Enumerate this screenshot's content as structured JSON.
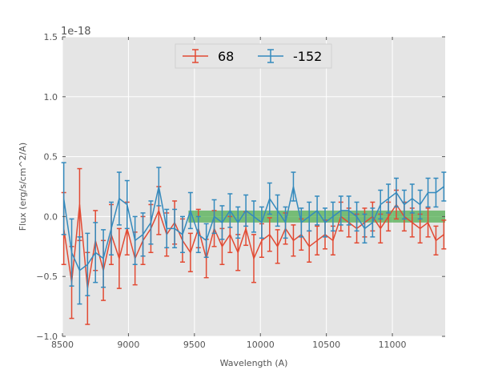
{
  "chart_data": {
    "type": "line",
    "title": "",
    "xlabel": "Wavelength (A)",
    "ylabel": "Flux (erg/s/cm^2/A)",
    "offset_text": "1e-18",
    "xlim": [
      8500,
      11400
    ],
    "ylim": [
      -1.0,
      1.5
    ],
    "xticks": [
      8500,
      9000,
      9500,
      10000,
      10500,
      11000
    ],
    "xtick_labels": [
      "8500",
      "9000",
      "9500",
      "10000",
      "10500",
      "11000"
    ],
    "yticks": [
      -1.0,
      -0.5,
      0.0,
      0.5,
      1.0,
      1.5
    ],
    "ytick_labels": [
      "−1.0",
      "−0.5",
      "0.0",
      "0.5",
      "1.0",
      "1.5"
    ],
    "grid": true,
    "legend_position": "top-center",
    "band": {
      "x": [
        9455,
        11400
      ],
      "y": [
        -0.05,
        0.05
      ],
      "color": "#2ca02c"
    },
    "x": [
      8510,
      8570,
      8630,
      8690,
      8750,
      8810,
      8870,
      8930,
      8990,
      9050,
      9110,
      9170,
      9230,
      9290,
      9350,
      9410,
      9470,
      9530,
      9590,
      9650,
      9710,
      9770,
      9830,
      9890,
      9950,
      10010,
      10070,
      10130,
      10190,
      10250,
      10310,
      10370,
      10430,
      10490,
      10550,
      10610,
      10670,
      10730,
      10790,
      10850,
      10910,
      10970,
      11030,
      11090,
      11150,
      11210,
      11270,
      11330,
      11390
    ],
    "series": [
      {
        "name": "68",
        "color": "#e24a33",
        "values": [
          -0.1,
          -0.55,
          0.1,
          -0.6,
          -0.2,
          -0.45,
          -0.15,
          -0.35,
          -0.1,
          -0.35,
          -0.2,
          -0.1,
          0.05,
          -0.15,
          -0.05,
          -0.2,
          -0.3,
          -0.1,
          -0.35,
          -0.1,
          -0.25,
          -0.15,
          -0.3,
          -0.1,
          -0.35,
          -0.2,
          -0.15,
          -0.25,
          -0.1,
          -0.2,
          -0.15,
          -0.25,
          -0.2,
          -0.15,
          -0.2,
          0.0,
          -0.05,
          -0.1,
          -0.05,
          0.0,
          -0.1,
          0.0,
          0.1,
          0.0,
          -0.05,
          -0.1,
          -0.05,
          -0.2,
          -0.15
        ],
        "errors": [
          0.3,
          0.3,
          0.3,
          0.3,
          0.25,
          0.25,
          0.25,
          0.25,
          0.22,
          0.22,
          0.2,
          0.2,
          0.2,
          0.18,
          0.18,
          0.18,
          0.16,
          0.16,
          0.16,
          0.15,
          0.15,
          0.15,
          0.15,
          0.14,
          0.2,
          0.14,
          0.14,
          0.14,
          0.13,
          0.13,
          0.13,
          0.13,
          0.12,
          0.12,
          0.12,
          0.12,
          0.12,
          0.12,
          0.12,
          0.12,
          0.12,
          0.12,
          0.12,
          0.12,
          0.12,
          0.12,
          0.12,
          0.12,
          0.12
        ]
      },
      {
        "name": "-152",
        "color": "#348abd",
        "values": [
          0.15,
          -0.3,
          -0.45,
          -0.4,
          -0.3,
          -0.35,
          -0.1,
          0.15,
          0.1,
          -0.2,
          -0.15,
          -0.05,
          0.25,
          -0.1,
          -0.1,
          -0.15,
          0.05,
          -0.15,
          -0.2,
          0.0,
          -0.05,
          0.05,
          -0.05,
          0.05,
          0.0,
          -0.05,
          0.15,
          0.05,
          -0.05,
          0.25,
          -0.05,
          0.0,
          0.05,
          -0.05,
          0.0,
          0.05,
          0.05,
          0.0,
          -0.1,
          -0.05,
          0.1,
          0.15,
          0.2,
          0.1,
          0.15,
          0.1,
          0.2,
          0.2,
          0.25
        ],
        "errors": [
          0.3,
          0.28,
          0.28,
          0.26,
          0.25,
          0.24,
          0.22,
          0.22,
          0.2,
          0.2,
          0.18,
          0.18,
          0.16,
          0.16,
          0.16,
          0.15,
          0.15,
          0.15,
          0.14,
          0.14,
          0.14,
          0.14,
          0.13,
          0.13,
          0.13,
          0.13,
          0.13,
          0.13,
          0.13,
          0.12,
          0.12,
          0.12,
          0.12,
          0.12,
          0.12,
          0.12,
          0.12,
          0.12,
          0.12,
          0.12,
          0.12,
          0.12,
          0.12,
          0.12,
          0.12,
          0.12,
          0.12,
          0.12,
          0.12
        ]
      }
    ]
  }
}
